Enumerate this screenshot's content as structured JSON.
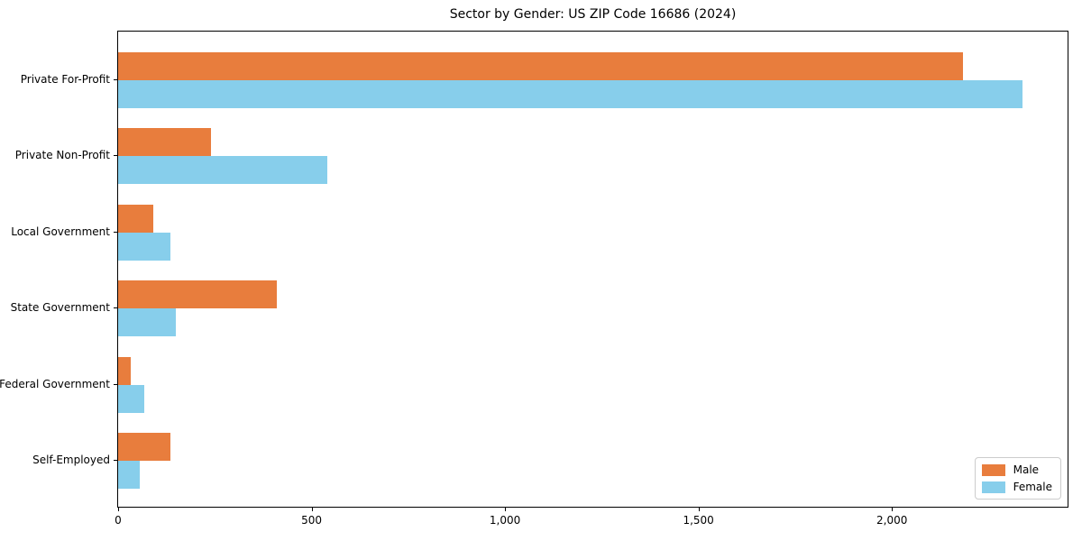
{
  "chart_data": {
    "type": "bar",
    "orientation": "horizontal",
    "title": "Sector by Gender: US ZIP Code 16686 (2024)",
    "categories": [
      "Private For-Profit",
      "Private Non-Profit",
      "Local Government",
      "State Government",
      "Federal Government",
      "Self-Employed"
    ],
    "series": [
      {
        "name": "Male",
        "color": "#e87d3d",
        "values": [
          2184,
          240,
          91,
          409,
          33,
          135
        ]
      },
      {
        "name": "Female",
        "color": "#87ceeb",
        "values": [
          2337,
          540,
          135,
          149,
          67,
          56
        ]
      }
    ],
    "xlabel": "",
    "ylabel": "",
    "xlim": [
      0,
      2454
    ],
    "xticks": {
      "values": [
        0,
        500,
        1000,
        1500,
        2000
      ],
      "labels": [
        "0",
        "500",
        "1,000",
        "1,500",
        "2,000"
      ]
    },
    "grid": false,
    "legend": {
      "position": "lower right",
      "entries": [
        "Male",
        "Female"
      ]
    }
  }
}
